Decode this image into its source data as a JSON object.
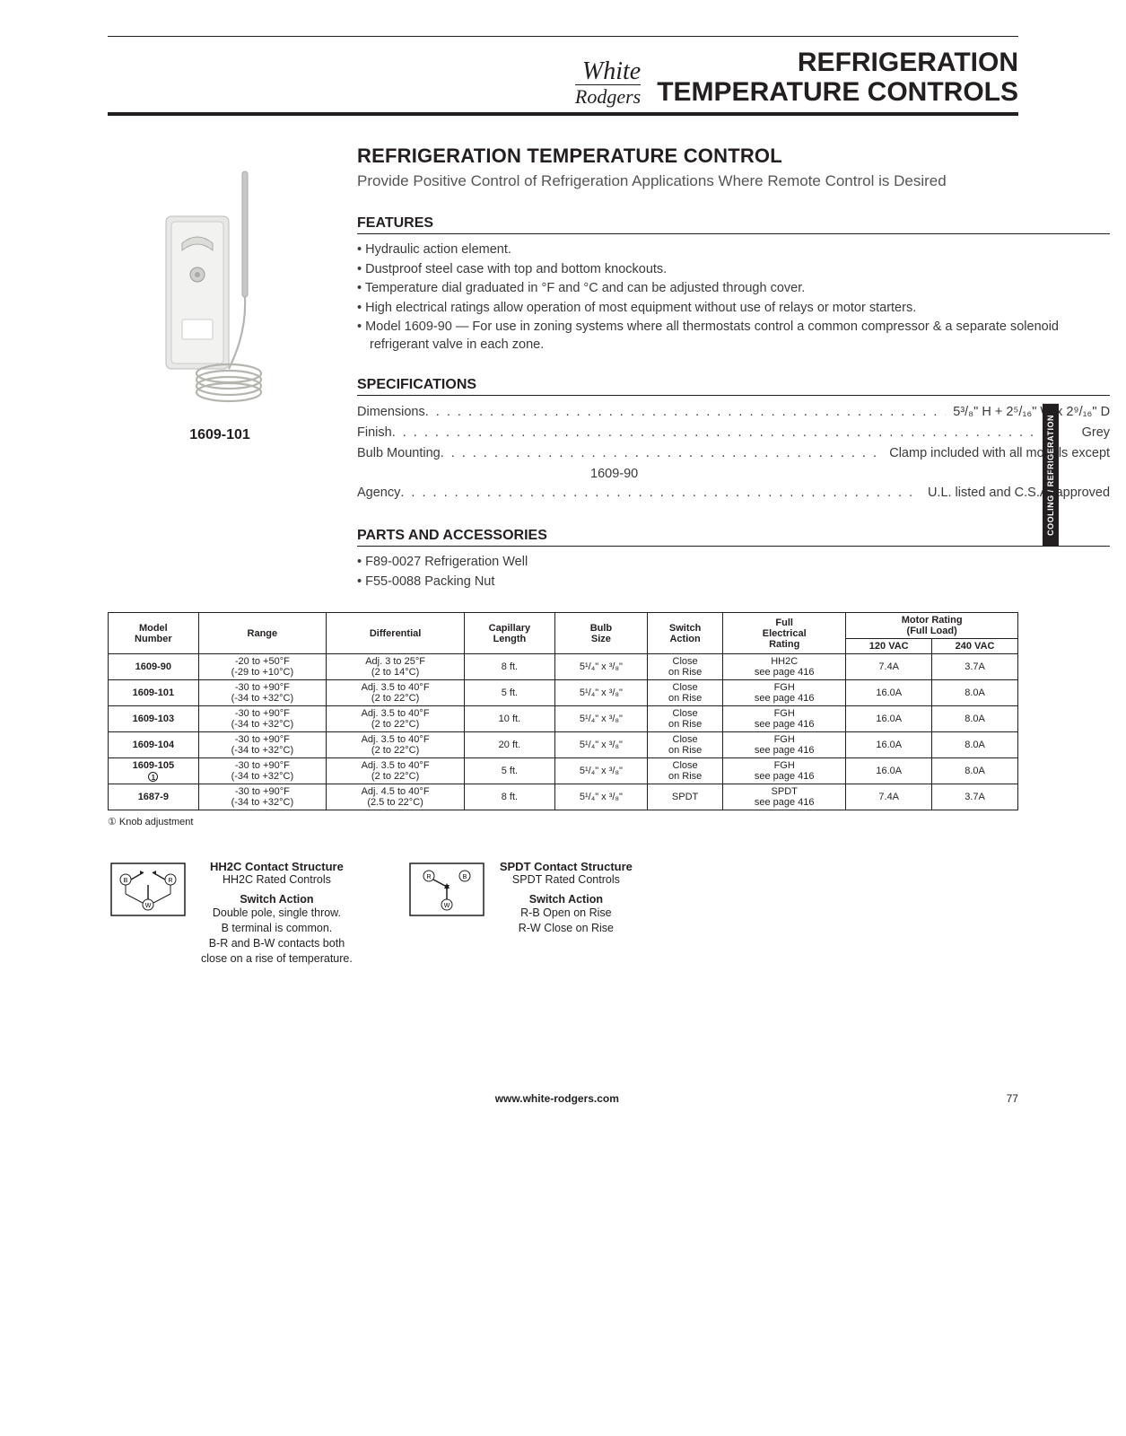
{
  "header": {
    "brand_line1": "White",
    "brand_line2": "Rodgers",
    "title_line1": "REFRIGERATION",
    "title_line2": "TEMPERATURE CONTROLS"
  },
  "side_tab": "COOLING / REFRIGERATION",
  "figure_caption": "1609-101",
  "section_title": "REFRIGERATION TEMPERATURE CONTROL",
  "section_subtitle": "Provide Positive Control of Refrigeration Applications Where Remote Control is Desired",
  "features_heading": "FEATURES",
  "features": [
    "Hydraulic action element.",
    "Dustproof steel case with top and bottom knockouts.",
    "Temperature dial graduated in °F and °C and can be adjusted through cover.",
    "High electrical ratings allow operation of most equipment without use of relays or motor starters.",
    "Model 1609-90 — For use in zoning systems where all thermostats control a common compressor & a separate solenoid refrigerant valve in each zone."
  ],
  "specs_heading": "SPECIFICATIONS",
  "specs": [
    {
      "label": "Dimensions",
      "value": "5³/₈\" H + 2⁵/₁₆\" W x 2⁹/₁₆\" D"
    },
    {
      "label": "Finish",
      "value": "Grey"
    },
    {
      "label": "Bulb Mounting",
      "value": "Clamp included with all models except",
      "cont": "1609-90"
    },
    {
      "label": "Agency",
      "value": "U.L. listed and C.S.A. approved"
    }
  ],
  "parts_heading": "PARTS AND ACCESSORIES",
  "parts": [
    "F89-0027 Refrigeration Well",
    "F55-0088 Packing Nut"
  ],
  "table": {
    "headers": {
      "model": "Model Number",
      "range": "Range",
      "diff": "Differential",
      "cap": "Capillary Length",
      "bulb": "Bulb Size",
      "switch": "Switch Action",
      "elec": "Full Electrical Rating",
      "motor": "Motor Rating (Full Load)",
      "v120": "120 VAC",
      "v240": "240 VAC"
    },
    "rows": [
      {
        "model": "1609-90",
        "note": "",
        "range_f": "-20 to +50°F",
        "range_c": "(-29 to +10°C)",
        "diff_f": "Adj. 3 to 25°F",
        "diff_c": "(2 to 14°C)",
        "cap": "8 ft.",
        "bulb": "5¹/₄\" x ³/₈\"",
        "switch": "Close on Rise",
        "elec": "HH2C see page 416",
        "v120": "7.4A",
        "v240": "3.7A"
      },
      {
        "model": "1609-101",
        "note": "",
        "range_f": "-30 to +90°F",
        "range_c": "(-34 to +32°C)",
        "diff_f": "Adj. 3.5 to 40°F",
        "diff_c": "(2 to 22°C)",
        "cap": "5 ft.",
        "bulb": "5¹/₄\" x ³/₈\"",
        "switch": "Close on Rise",
        "elec": "FGH see page 416",
        "v120": "16.0A",
        "v240": "8.0A"
      },
      {
        "model": "1609-103",
        "note": "",
        "range_f": "-30 to +90°F",
        "range_c": "(-34 to +32°C)",
        "diff_f": "Adj. 3.5 to 40°F",
        "diff_c": "(2 to 22°C)",
        "cap": "10 ft.",
        "bulb": "5¹/₄\" x ³/₈\"",
        "switch": "Close on Rise",
        "elec": "FGH see page 416",
        "v120": "16.0A",
        "v240": "8.0A"
      },
      {
        "model": "1609-104",
        "note": "",
        "range_f": "-30 to +90°F",
        "range_c": "(-34 to +32°C)",
        "diff_f": "Adj. 3.5 to 40°F",
        "diff_c": "(2 to 22°C)",
        "cap": "20 ft.",
        "bulb": "5¹/₄\" x ³/₈\"",
        "switch": "Close on Rise",
        "elec": "FGH see page 416",
        "v120": "16.0A",
        "v240": "8.0A"
      },
      {
        "model": "1609-105",
        "note": "①",
        "range_f": "-30 to +90°F",
        "range_c": "(-34 to +32°C)",
        "diff_f": "Adj. 3.5 to 40°F",
        "diff_c": "(2 to 22°C)",
        "cap": "5 ft.",
        "bulb": "5¹/₄\" x ³/₈\"",
        "switch": "Close on Rise",
        "elec": "FGH see page 416",
        "v120": "16.0A",
        "v240": "8.0A"
      },
      {
        "model": "1687-9",
        "note": "",
        "range_f": "-30 to +90°F",
        "range_c": "(-34 to +32°C)",
        "diff_f": "Adj. 4.5 to 40°F",
        "diff_c": "(2.5 to 22°C)",
        "cap": "8 ft.",
        "bulb": "5¹/₄\" x ³/₈\"",
        "switch": "SPDT",
        "elec": "SPDT see page 416",
        "v120": "7.4A",
        "v240": "3.7A"
      }
    ]
  },
  "table_footnote": "① Knob adjustment",
  "contact_hh2c": {
    "title": "HH2C Contact Structure",
    "sub": "HH2C Rated Controls",
    "action_h": "Switch Action",
    "action": "Double pole, single throw.\nB terminal is common.\nB-R and B-W contacts both\nclose on a rise of temperature."
  },
  "contact_spdt": {
    "title": "SPDT Contact Structure",
    "sub": "SPDT Rated Controls",
    "action_h": "Switch Action",
    "action": "R-B Open on Rise\nR-W Close on Rise"
  },
  "footer": {
    "url": "www.white-rodgers.com",
    "page": "77"
  },
  "colors": {
    "text": "#231f20",
    "grey_text": "#555555",
    "bg": "#ffffff"
  }
}
